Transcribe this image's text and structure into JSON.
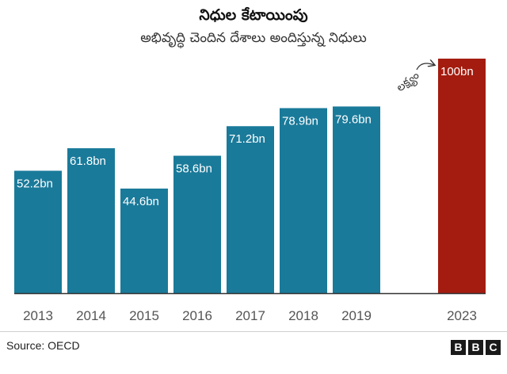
{
  "title": "నిధుల కేటాయింపు",
  "subtitle": "అభివృద్ధి చెందిన దేశాలు అందిస్తున్న నిధులు",
  "source": "Source: OECD",
  "logo_letters": [
    "B",
    "B",
    "C"
  ],
  "colors": {
    "bar": "#1a7a9a",
    "target_bar": "#a31c0f",
    "axis": "#333333",
    "label": "#ffffff",
    "tick": "#555555"
  },
  "chart_data": {
    "type": "bar",
    "categories": [
      "2013",
      "2014",
      "2015",
      "2016",
      "2017",
      "2018",
      "2019",
      "2023"
    ],
    "values": [
      52.2,
      61.8,
      44.6,
      58.6,
      71.2,
      78.9,
      79.6,
      100
    ],
    "value_labels": [
      "52.2bn",
      "61.8bn",
      "44.6bn",
      "58.6bn",
      "71.2bn",
      "78.9bn",
      "79.6bn",
      "100bn"
    ],
    "highlight_index": 7,
    "annotation": "లక్ష్యం",
    "ylim": [
      0,
      100
    ],
    "grid": false,
    "legend": "none"
  }
}
